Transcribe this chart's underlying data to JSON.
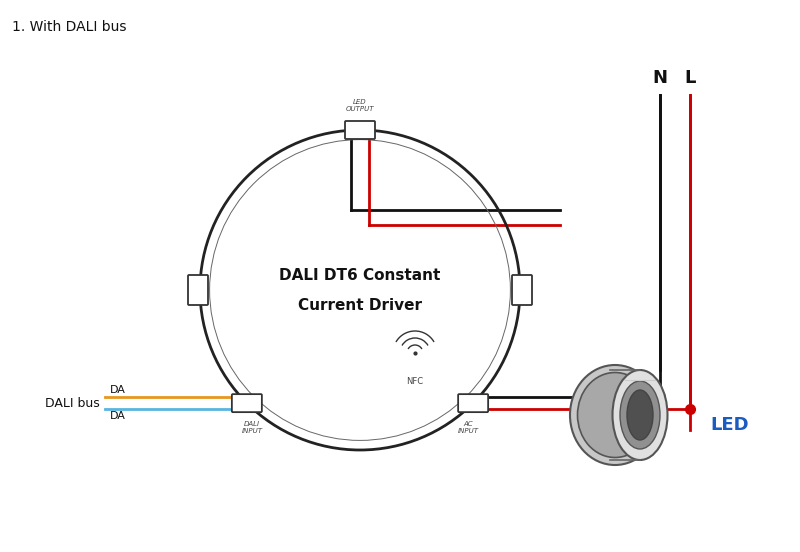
{
  "title": "1. With DALI bus",
  "title_fontsize": 10,
  "bg_color": "#ffffff",
  "driver_label_line1": "DALI DT6 Constant",
  "driver_label_line2": "Current Driver",
  "driver_label_fontsize": 11,
  "dali_input_label": "DALI\nINPUT",
  "ac_input_label": "AC\nINPUT",
  "led_output_label": "LED\nOUTPUT",
  "nfc_label": "NFC",
  "dali_bus_label": "DALI bus",
  "da_label": "DA",
  "N_label": "N",
  "L_label": "L",
  "LED_label": "LED",
  "wire_black_color": "#111111",
  "wire_red_color": "#cc0000",
  "wire_orange_color": "#e8961e",
  "wire_blue_color": "#5ab4e0",
  "junction_black_color": "#111111",
  "junction_red_color": "#cc0000",
  "label_color": "#111111",
  "led_label_color": "#1a5cbf",
  "circle_color": "#222222",
  "note_color": "#555555"
}
